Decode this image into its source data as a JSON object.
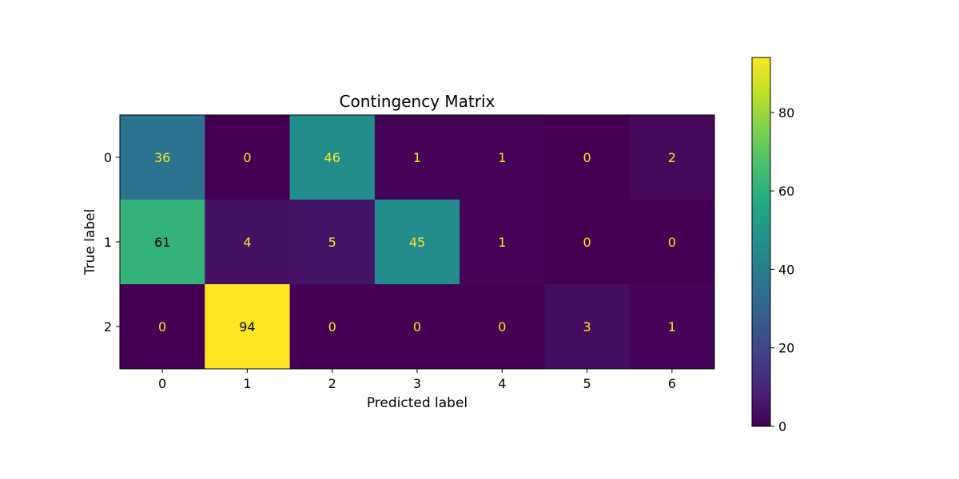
{
  "chart_data": {
    "type": "heatmap",
    "title": "Contingency Matrix",
    "xlabel": "Predicted label",
    "ylabel": "True label",
    "x_categories": [
      "0",
      "1",
      "2",
      "3",
      "4",
      "5",
      "6"
    ],
    "y_categories": [
      "0",
      "1",
      "2"
    ],
    "values": [
      [
        36,
        0,
        46,
        1,
        1,
        0,
        2
      ],
      [
        61,
        4,
        5,
        45,
        1,
        0,
        0
      ],
      [
        0,
        94,
        0,
        0,
        0,
        3,
        1
      ]
    ],
    "colormap": "viridis",
    "colorbar": {
      "min": 0,
      "max": 94,
      "ticks": [
        0,
        20,
        40,
        60,
        80
      ]
    },
    "cell_text_colors": {
      "on_dark": "#fde725",
      "on_light": "#000000"
    }
  }
}
